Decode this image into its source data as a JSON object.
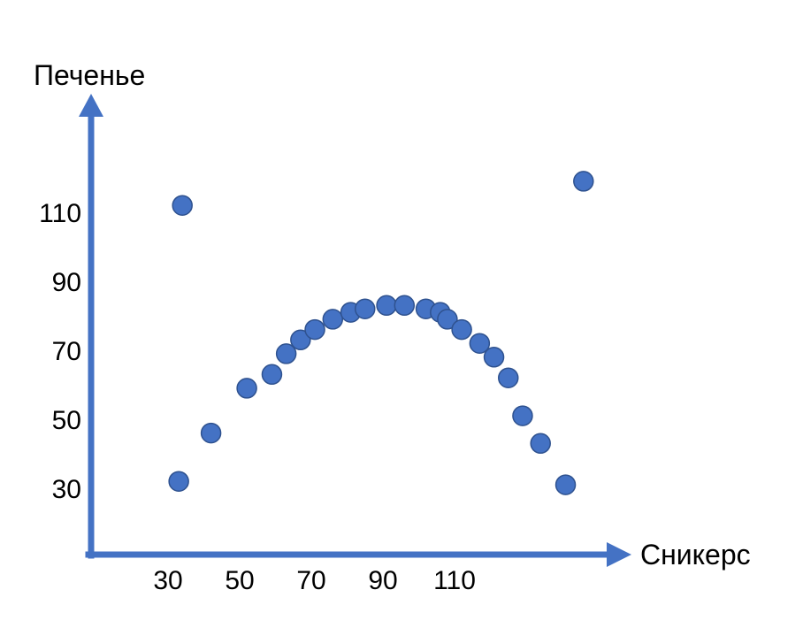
{
  "chart_data": {
    "type": "scatter",
    "title": "",
    "xlabel": "Сникерс",
    "ylabel": "Печенье",
    "x_ticks": [
      30,
      50,
      70,
      90,
      110
    ],
    "y_ticks": [
      30,
      50,
      70,
      90,
      110
    ],
    "x_tick_labels": [
      "30",
      "50",
      "70",
      "90",
      "110"
    ],
    "y_tick_labels": [
      "30",
      "50",
      "70",
      "90",
      "110"
    ],
    "grid": false,
    "legend": "none",
    "colors": {
      "axis": "#4472c4",
      "point_fill": "#4472c4",
      "point_stroke": "#2f528f"
    },
    "points": [
      {
        "x": 33,
        "y": 32
      },
      {
        "x": 34,
        "y": 112
      },
      {
        "x": 42,
        "y": 46
      },
      {
        "x": 52,
        "y": 59
      },
      {
        "x": 59,
        "y": 63
      },
      {
        "x": 63,
        "y": 69
      },
      {
        "x": 67,
        "y": 73
      },
      {
        "x": 71,
        "y": 76
      },
      {
        "x": 76,
        "y": 79
      },
      {
        "x": 81,
        "y": 81
      },
      {
        "x": 85,
        "y": 82
      },
      {
        "x": 91,
        "y": 83
      },
      {
        "x": 96,
        "y": 83
      },
      {
        "x": 102,
        "y": 82
      },
      {
        "x": 106,
        "y": 81
      },
      {
        "x": 108,
        "y": 79
      },
      {
        "x": 112,
        "y": 76
      },
      {
        "x": 117,
        "y": 72
      },
      {
        "x": 121,
        "y": 68
      },
      {
        "x": 125,
        "y": 62
      },
      {
        "x": 129,
        "y": 51
      },
      {
        "x": 134,
        "y": 43
      },
      {
        "x": 141,
        "y": 31
      },
      {
        "x": 146,
        "y": 119
      }
    ]
  }
}
